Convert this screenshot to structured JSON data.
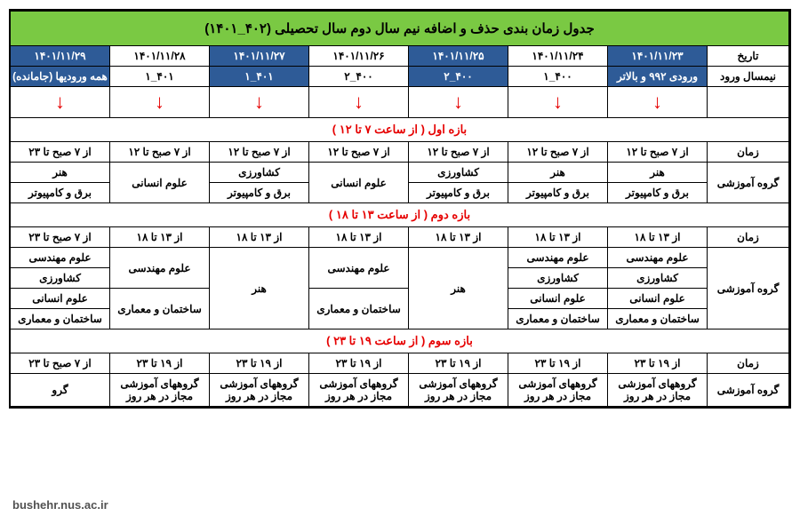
{
  "colors": {
    "title_bg": "#7ac943",
    "header_blue": "#2e5b97",
    "header_blue_text": "#ffffff",
    "section_text": "#e60000",
    "arrow_color": "#e60000",
    "border": "#000000",
    "bg": "#ffffff"
  },
  "title": "جدول زمان بندی حذف و اضافه نیم سال دوم سال تحصیلی (۴۰۲_۱۴۰۱)",
  "row_labels": {
    "date": "تاریخ",
    "entry": "نیمسال ورود",
    "time": "زمان",
    "group": "گروه آموزشی"
  },
  "dates": [
    "۱۴۰۱/۱۱/۲۳",
    "۱۴۰۱/۱۱/۲۴",
    "۱۴۰۱/۱۱/۲۵",
    "۱۴۰۱/۱۱/۲۶",
    "۱۴۰۱/۱۱/۲۷",
    "۱۴۰۱/۱۱/۲۸",
    "۱۴۰۱/۱۱/۲۹"
  ],
  "entries": [
    "ورودی ۹۹۲ و بالاتر",
    "۴۰۰_۱",
    "۴۰۰_۲",
    "۴۰۰_۲",
    "۴۰۱_۱",
    "۴۰۱_۱",
    "همه ورودیها (جامانده)"
  ],
  "header_blue_idx": [
    0,
    2,
    4,
    6
  ],
  "sections": {
    "s1": "بازه اول ( از ساعت ۷ تا ۱۲ )",
    "s2": "بازه دوم ( از ساعت ۱۳ تا ۱۸ )",
    "s3": "بازه سوم ( از ساعت ۱۹ تا ۲۳ )"
  },
  "s1_times": [
    "از ۷ صبح تا ۱۲",
    "از ۷ صبح تا ۱۲",
    "از ۷ صبح تا ۱۲",
    "از ۷ صبح تا ۱۲",
    "از ۷ صبح تا ۱۲",
    "از ۷ صبح تا ۱۲",
    "از ۷ صبح تا ۲۳"
  ],
  "s1_g": {
    "c0a": "هنر",
    "c0b": "برق و کامپیوتر",
    "c1a": "هنر",
    "c1b": "برق و کامپیوتر",
    "c2a": "کشاورزی",
    "c2b": "برق و کامپیوتر",
    "c3": "علوم انسانی",
    "c4a": "کشاورزی",
    "c4b": "برق و کامپیوتر",
    "c5": "علوم انسانی",
    "c6a": "هنر",
    "c6b": "برق و کامپیوتر"
  },
  "s2_times": [
    "از ۱۳ تا ۱۸",
    "از ۱۳ تا ۱۸",
    "از ۱۳ تا ۱۸",
    "از ۱۳ تا ۱۸",
    "از ۱۳ تا ۱۸",
    "از ۱۳ تا ۱۸",
    "از ۷ صبح تا ۲۳"
  ],
  "s2_g": {
    "c0r1": "علوم مهندسی",
    "c0r2": "کشاورزی",
    "c0r3": "علوم انسانی",
    "c0r4": "ساختمان و معماری",
    "c1r1": "علوم مهندسی",
    "c1r2": "کشاورزی",
    "c1r3": "علوم انسانی",
    "c1r4": "ساختمان و معماری",
    "c2": "هنر",
    "c3a": "علوم مهندسی",
    "c3b": "ساختمان و معماری",
    "c4": "هنر",
    "c5a": "علوم مهندسی",
    "c5b": "ساختمان و معماری",
    "c6r1": "علوم مهندسی",
    "c6r2": "کشاورزی",
    "c6r3": "علوم انسانی",
    "c6r4": "ساختمان و معماری"
  },
  "s3_times": [
    "از ۱۹ تا ۲۳",
    "از ۱۹ تا ۲۳",
    "از ۱۹ تا ۲۳",
    "از ۱۹ تا ۲۳",
    "از ۱۹ تا ۲۳",
    "از ۱۹ تا ۲۳",
    "از ۷ صبح تا ۲۳"
  ],
  "s3_group": "گروههای آموزشی مجاز در هر روز",
  "s3_group_last": "گرو",
  "watermark": "bushehr.nus.ac.ir"
}
